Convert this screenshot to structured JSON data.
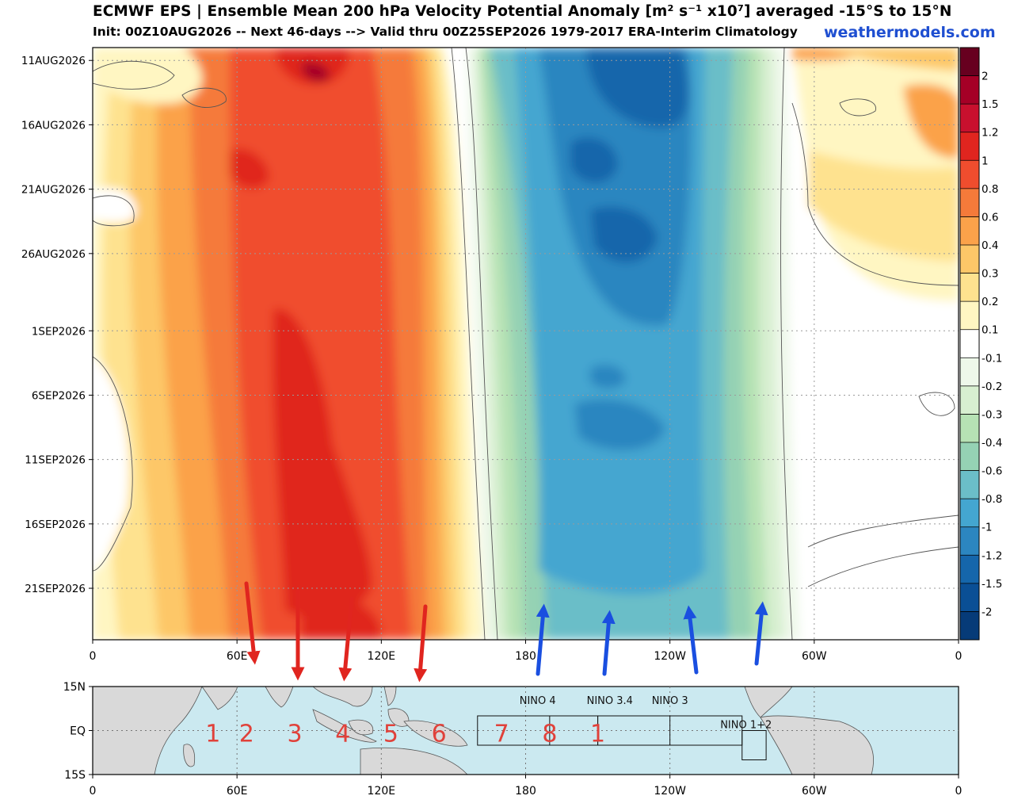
{
  "header": {
    "title": "ECMWF EPS | Ensemble Mean 200 hPa Velocity Potential Anomaly [m² s⁻¹ x10⁷] averaged -15°S to 15°N",
    "subtitle": "Init: 00Z10AUG2026 -- Next 46-days --> Valid thru 00Z25SEP2026 1979-2017 ERA-Interim Climatology",
    "credit": "weathermodels.com"
  },
  "chart_data": [
    {
      "type": "heatmap",
      "title": "ECMWF EPS | Ensemble Mean 200 hPa Velocity Potential Anomaly [m² s⁻¹ x10⁷] averaged -15°S to 15°N",
      "x_ticks": [
        {
          "lon": 0,
          "label": "0"
        },
        {
          "lon": 60,
          "label": "60E"
        },
        {
          "lon": 120,
          "label": "120E"
        },
        {
          "lon": 180,
          "label": "180"
        },
        {
          "lon": 240,
          "label": "120W"
        },
        {
          "lon": 300,
          "label": "60W"
        },
        {
          "lon": 360,
          "label": "0"
        }
      ],
      "y_ticks": [
        {
          "day": 0,
          "label": "11AUG2026"
        },
        {
          "day": 5,
          "label": "16AUG2026"
        },
        {
          "day": 10,
          "label": "21AUG2026"
        },
        {
          "day": 15,
          "label": "26AUG2026"
        },
        {
          "day": 21,
          "label": "1SEP2026"
        },
        {
          "day": 26,
          "label": "6SEP2026"
        },
        {
          "day": 31,
          "label": "11SEP2026"
        },
        {
          "day": 36,
          "label": "16SEP2026"
        },
        {
          "day": 41,
          "label": "21SEP2026"
        }
      ],
      "xlim": [
        0,
        360
      ],
      "ylim_days": [
        -1,
        45
      ],
      "grid": true,
      "colorbar": {
        "labels": [
          "2",
          "1.5",
          "1.2",
          "1",
          "0.8",
          "0.6",
          "0.4",
          "0.3",
          "0.2",
          "0.1",
          "-0.1",
          "-0.2",
          "-0.3",
          "-0.4",
          "-0.6",
          "-0.8",
          "-1",
          "-1.2",
          "-1.5",
          "-2"
        ],
        "colors": [
          "#67001f",
          "#a50026",
          "#c8102e",
          "#e0251f",
          "#f04d2e",
          "#f57a3a",
          "#fba24a",
          "#fdc768",
          "#fee28f",
          "#fff6c2",
          "#ffffff",
          "#eef8ea",
          "#d7efd0",
          "#b6e2b4",
          "#95d2b4",
          "#6bbec8",
          "#44a6d0",
          "#2c86c0",
          "#1566ab",
          "#0a4f95",
          "#063b78"
        ]
      },
      "features": [
        {
          "name": "positive anomaly core",
          "lon_range": [
            55,
            150
          ],
          "value_max": 1.4
        },
        {
          "name": "negative anomaly core",
          "lon_range": [
            175,
            260
          ],
          "value_min": -1.6
        }
      ]
    },
    {
      "type": "map",
      "lat_ticks": [
        "15N",
        "EQ",
        "15S"
      ],
      "lon_ticks": [
        "0",
        "60E",
        "120E",
        "180",
        "120W",
        "60W",
        "0"
      ],
      "regions": [
        {
          "label": "NINO 4",
          "lon_range": [
            160,
            210
          ]
        },
        {
          "label": "NINO 3.4",
          "lon_range": [
            190,
            240
          ]
        },
        {
          "label": "NINO 3",
          "lon_range": [
            210,
            270
          ]
        },
        {
          "label": "NINO 1+2",
          "lon_range": [
            270,
            280
          ]
        }
      ],
      "mjo_phase_labels": [
        {
          "label": "1",
          "lon": 50
        },
        {
          "label": "2",
          "lon": 64
        },
        {
          "label": "3",
          "lon": 84
        },
        {
          "label": "4",
          "lon": 104
        },
        {
          "label": "5",
          "lon": 124
        },
        {
          "label": "6",
          "lon": 144
        },
        {
          "label": "7",
          "lon": 170
        },
        {
          "label": "8",
          "lon": 190
        },
        {
          "label": "1",
          "lon": 210
        }
      ]
    }
  ]
}
